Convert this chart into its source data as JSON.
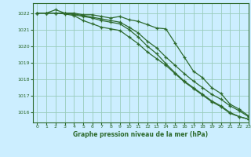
{
  "title": "Graphe pression niveau de la mer (hPa)",
  "bg_color": "#cceeff",
  "grid_color": "#99ccbb",
  "line_color": "#2d6a2d",
  "xlim": [
    -0.5,
    23
  ],
  "ylim": [
    1015.4,
    1022.6
  ],
  "yticks": [
    1016,
    1017,
    1018,
    1019,
    1020,
    1021,
    1022
  ],
  "xticks": [
    0,
    1,
    2,
    3,
    4,
    5,
    6,
    7,
    8,
    9,
    10,
    11,
    12,
    13,
    14,
    15,
    16,
    17,
    18,
    19,
    20,
    21,
    22,
    23
  ],
  "series": [
    [
      1022.0,
      1022.0,
      1022.2,
      1022.0,
      1022.0,
      1021.9,
      1021.9,
      1021.8,
      1021.7,
      1021.8,
      1021.6,
      1021.5,
      1021.3,
      1021.1,
      1021.05,
      1020.2,
      1019.35,
      1018.5,
      1018.1,
      1017.5,
      1017.15,
      1016.5,
      1016.2,
      1015.8
    ],
    [
      1022.0,
      1022.0,
      1022.0,
      1022.0,
      1021.95,
      1021.85,
      1021.75,
      1021.65,
      1021.55,
      1021.45,
      1021.15,
      1020.8,
      1020.3,
      1019.9,
      1019.35,
      1018.85,
      1018.35,
      1017.9,
      1017.5,
      1017.1,
      1016.8,
      1016.4,
      1016.1,
      1015.75
    ],
    [
      1022.0,
      1022.0,
      1022.0,
      1022.0,
      1021.9,
      1021.8,
      1021.7,
      1021.55,
      1021.45,
      1021.35,
      1021.0,
      1020.55,
      1020.0,
      1019.55,
      1018.95,
      1018.4,
      1017.9,
      1017.5,
      1017.1,
      1016.7,
      1016.4,
      1016.0,
      1015.75,
      1015.6
    ],
    [
      1022.0,
      1022.0,
      1022.0,
      1021.95,
      1021.85,
      1021.55,
      1021.35,
      1021.15,
      1021.05,
      1020.95,
      1020.55,
      1020.15,
      1019.65,
      1019.25,
      1018.85,
      1018.35,
      1017.85,
      1017.45,
      1017.05,
      1016.65,
      1016.35,
      1015.95,
      1015.75,
      1015.6
    ]
  ]
}
